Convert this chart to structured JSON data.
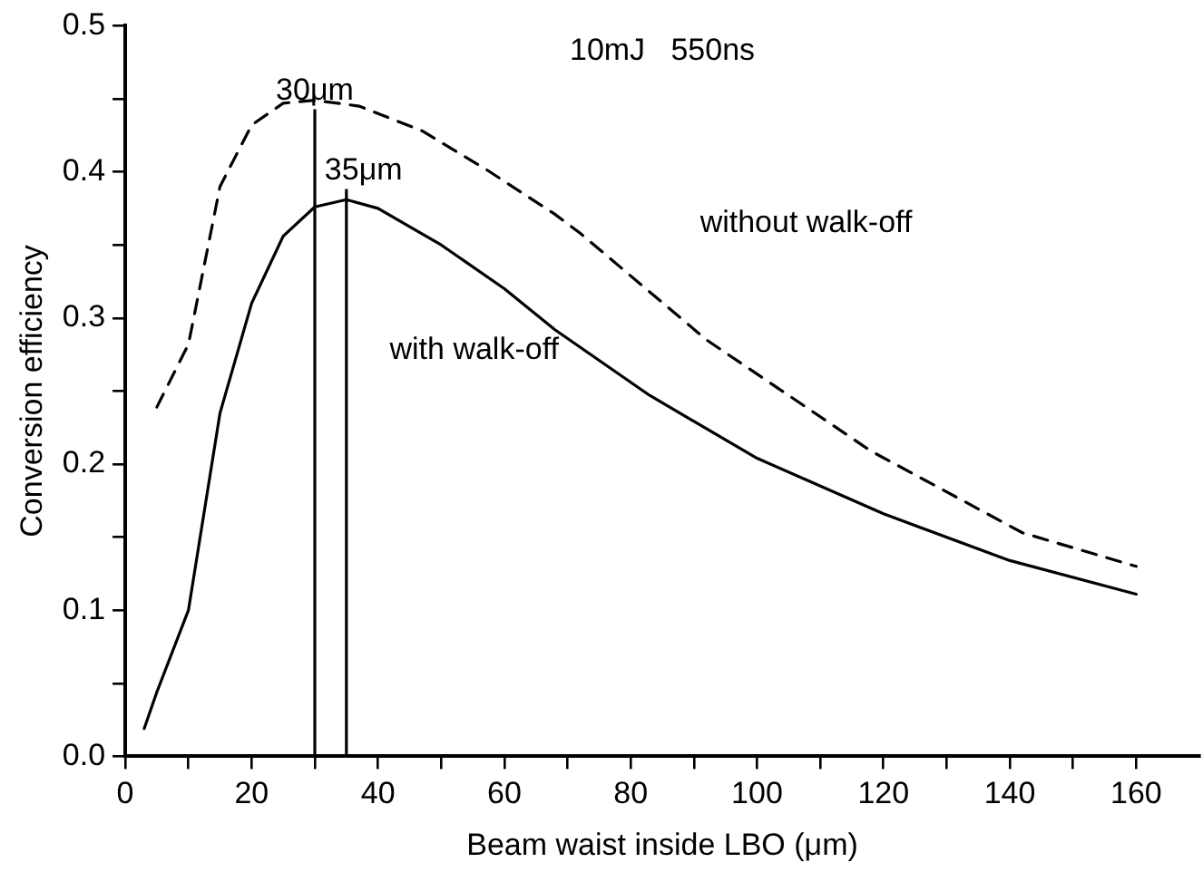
{
  "chart_data": {
    "type": "line",
    "xlabel": "Beam waist inside LBO (μm)",
    "ylabel": "Conversion efficiency",
    "xlim": [
      0,
      170
    ],
    "ylim": [
      0,
      0.5
    ],
    "xticks": [
      0,
      {
        "value": 10,
        "label": null
      },
      20,
      {
        "value": 30,
        "label": null
      },
      40,
      {
        "value": 50,
        "label": null
      },
      60,
      {
        "value": 70,
        "label": null
      },
      80,
      {
        "value": 90,
        "label": null
      },
      100,
      {
        "value": 110,
        "label": null
      },
      120,
      {
        "value": 130,
        "label": null
      },
      140,
      {
        "value": 150,
        "label": null
      },
      160
    ],
    "yticks": [
      {
        "value": 0,
        "label": "0.0"
      },
      {
        "value": 0.05,
        "label": null
      },
      0.1,
      {
        "value": 0.15,
        "label": null
      },
      0.2,
      {
        "value": 0.25,
        "label": null
      },
      0.3,
      {
        "value": 0.35,
        "label": null
      },
      0.4,
      {
        "value": 0.45,
        "label": null
      },
      0.5
    ],
    "grid": false,
    "legend": false,
    "marker": "none",
    "series": [
      {
        "name": "with walk-off",
        "color": "#000000",
        "line_style": "solid",
        "x": [
          3,
          5,
          10,
          15,
          20,
          25,
          30,
          35,
          40,
          50,
          60,
          68,
          83,
          100,
          120,
          140,
          160
        ],
        "values": [
          0.019,
          0.044,
          0.1,
          0.235,
          0.31,
          0.356,
          0.376,
          0.381,
          0.375,
          0.35,
          0.32,
          0.292,
          0.247,
          0.204,
          0.166,
          0.134,
          0.111
        ]
      },
      {
        "name": "without walk-off",
        "color": "#000000",
        "line_style": "dashed",
        "x": [
          5,
          10,
          15,
          20,
          25,
          30,
          37,
          47,
          57,
          68,
          72,
          92,
          118,
          142,
          160
        ],
        "values": [
          0.239,
          0.282,
          0.39,
          0.432,
          0.447,
          0.449,
          0.445,
          0.428,
          0.402,
          0.371,
          0.358,
          0.285,
          0.209,
          0.153,
          0.13
        ]
      }
    ],
    "ref_lines": [
      {
        "axis": "x",
        "value": 30,
        "label": "30μm",
        "color": "#000000"
      },
      {
        "axis": "x",
        "value": 35,
        "label": "35μm",
        "color": "#000000"
      }
    ],
    "annotations": [
      "10mJ   550ns"
    ]
  }
}
